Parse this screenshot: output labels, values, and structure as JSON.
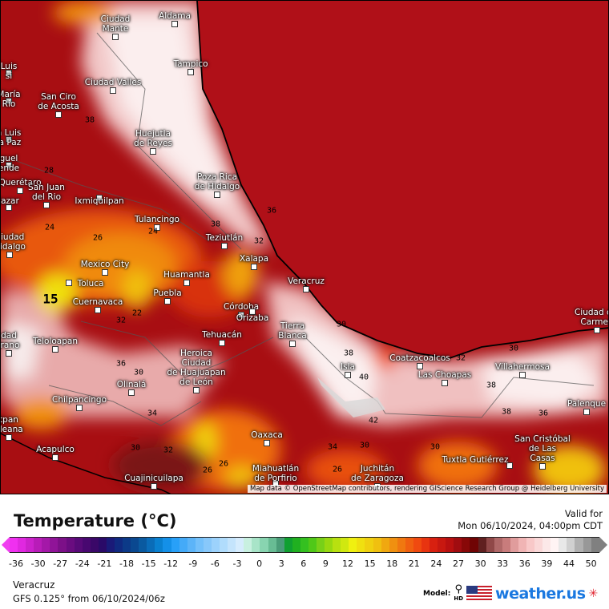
{
  "legend": {
    "title": "Temperature (°C)",
    "valid_label": "Valid for",
    "valid_time": "Mon 06/10/2024, 04:00pm CDT",
    "ticks": [
      "-36",
      "-30",
      "-27",
      "-24",
      "-21",
      "-18",
      "-15",
      "-12",
      "-9",
      "-6",
      "-3",
      "0",
      "3",
      "6",
      "9",
      "12",
      "15",
      "18",
      "21",
      "24",
      "27",
      "30",
      "33",
      "36",
      "39",
      "44",
      "50"
    ],
    "colors": [
      "#f030f0",
      "#e028e0",
      "#cc22cc",
      "#b81cb8",
      "#a418a8",
      "#901498",
      "#7c1088",
      "#6a0c80",
      "#580a78",
      "#480870",
      "#3a0868",
      "#2a0a68",
      "#1a1a78",
      "#102a80",
      "#0c3a88",
      "#0a4890",
      "#0a5aa0",
      "#0a6cb8",
      "#0a80d0",
      "#1490e8",
      "#28a0f8",
      "#44aaf8",
      "#5cb4f8",
      "#74c0fa",
      "#88c8fa",
      "#9cd2fc",
      "#b0dcfc",
      "#c4e4fc",
      "#d6ecfd",
      "#c8f0e0",
      "#a8e4c8",
      "#88d4b0",
      "#68bc94",
      "#4a9c78",
      "#10a030",
      "#20b020",
      "#34c020",
      "#50c818",
      "#78d018",
      "#98d810",
      "#b8e010",
      "#d0e810",
      "#f0f010",
      "#f0e010",
      "#f0d010",
      "#f0c010",
      "#f0a810",
      "#f09010",
      "#f07810",
      "#f06010",
      "#f04a10",
      "#e83410",
      "#d82010",
      "#c81810",
      "#b81010",
      "#a00c10",
      "#880808",
      "#700404",
      "#602020",
      "#904848",
      "#b06868",
      "#c87c7c",
      "#e09c9c",
      "#f0b4b4",
      "#f8c8c8",
      "#fad8d8",
      "#fce8e8",
      "#fff4f4",
      "#e8e8e8",
      "#d0d0d0",
      "#b0b0b0",
      "#989898",
      "#808080"
    ],
    "region": "Veracruz",
    "model": "GFS 0.125° from  06/10/2024/06z",
    "model_label": "Model:",
    "hd_label": "HD",
    "brand": "weather.us"
  },
  "map": {
    "attribution": "Map data © OpenStreetMap contributors, rendering GIScience Research Group @ Heidelberg University",
    "cities": [
      {
        "name": "Ciudad\nMante"
      },
      {
        "name": "Aldama"
      },
      {
        "name": "Tampico"
      },
      {
        "name": "Ciudad Valles"
      },
      {
        "name": "San Ciro\nde Acosta"
      },
      {
        "name": "Huejutla\nde Reyes"
      },
      {
        "name": "Poza Rica\nde Hidalgo"
      },
      {
        "name": "Querétaro"
      },
      {
        "name": "San Juan\ndel Rio"
      },
      {
        "name": "Ixmiquilpan"
      },
      {
        "name": "Tulancingo"
      },
      {
        "name": "Teziutlán"
      },
      {
        "name": "Ciudad\nHidalgo"
      },
      {
        "name": "Mexico City"
      },
      {
        "name": "Toluca"
      },
      {
        "name": "Cuernavaca"
      },
      {
        "name": "Huamantla"
      },
      {
        "name": "Puebla"
      },
      {
        "name": "Xalapa"
      },
      {
        "name": "Córdoba"
      },
      {
        "name": "Orizaba"
      },
      {
        "name": "Tehuacán"
      },
      {
        "name": "Veracruz"
      },
      {
        "name": "Tierra\nBlanca"
      },
      {
        "name": "Teloloapan"
      },
      {
        "name": "Heroica\nCiudad\nde Huajuapan\nde León"
      },
      {
        "name": "Olinalá"
      },
      {
        "name": "Chilpancingo"
      },
      {
        "name": "Acapulco"
      },
      {
        "name": "Cuajinicuilapa"
      },
      {
        "name": "Oaxaca"
      },
      {
        "name": "Miahuatlán\nde Porfirio"
      },
      {
        "name": "Juchitán\nde Zaragoza"
      },
      {
        "name": "Isla"
      },
      {
        "name": "Coatzacoalcos"
      },
      {
        "name": "Las Choapas"
      },
      {
        "name": "Villahermosa"
      },
      {
        "name": "Palenque"
      },
      {
        "name": "Ciudad del\nCarmen"
      },
      {
        "name": "Tuxtla Gutiérrez"
      },
      {
        "name": "San Cristóbal\nde Las\nCasas"
      },
      {
        "name": "Luis\nsi"
      },
      {
        "name": "María\nRio"
      },
      {
        "name": "n Luis\nla Paz"
      },
      {
        "name": "guel\nende"
      },
      {
        "name": "lazar"
      },
      {
        "name": "tpan\naleana"
      },
      {
        "name": "dad\nirano"
      }
    ],
    "contour_labels": [
      "38",
      "28",
      "24",
      "26",
      "24",
      "38",
      "32",
      "15",
      "22",
      "32",
      "36",
      "30",
      "34",
      "30",
      "32",
      "26",
      "26",
      "38",
      "40",
      "42",
      "34",
      "30",
      "26",
      "30",
      "32",
      "30",
      "38",
      "36",
      "38",
      "30",
      "36"
    ]
  }
}
